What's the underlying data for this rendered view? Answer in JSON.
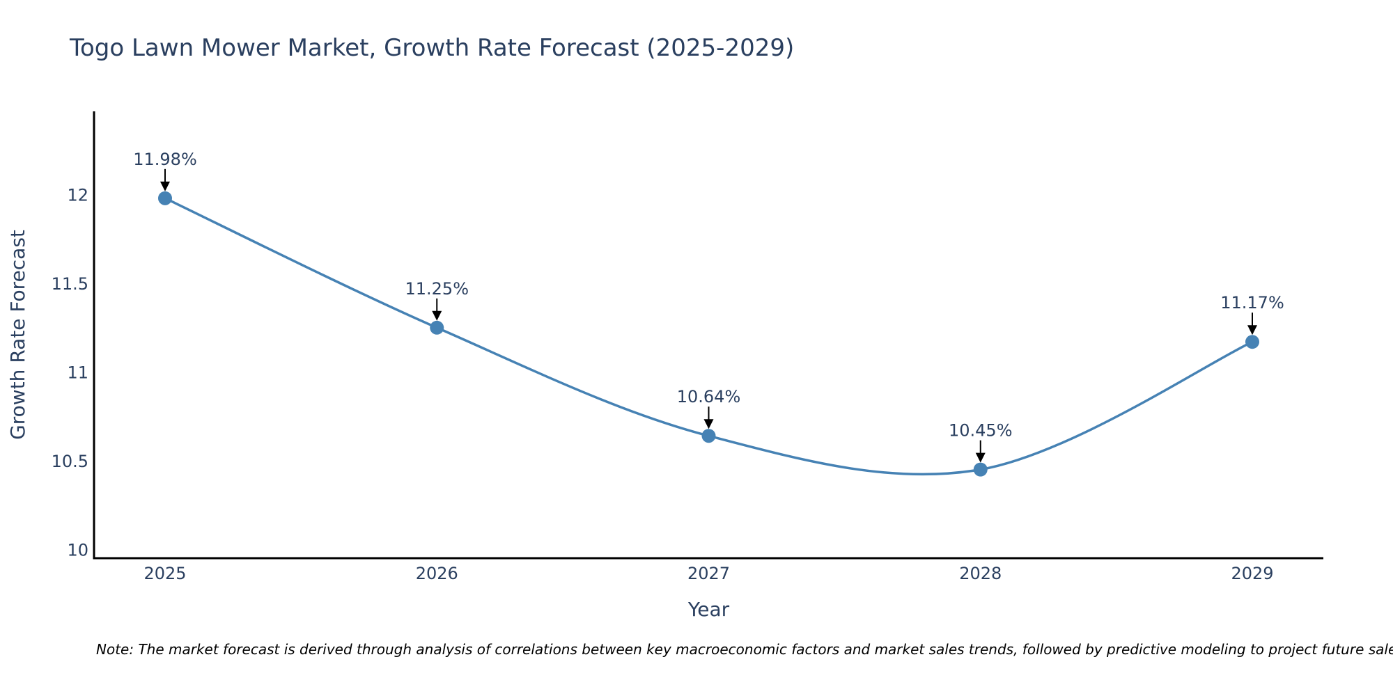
{
  "chart_data": {
    "type": "line",
    "title": "Togo Lawn Mower Market, Growth Rate Forecast (2025-2029)",
    "xlabel": "Year",
    "ylabel": "Growth Rate Forecast",
    "x": [
      "2025",
      "2026",
      "2027",
      "2028",
      "2029"
    ],
    "series": [
      {
        "name": "Growth Rate Forecast",
        "values": [
          11.98,
          11.25,
          10.64,
          10.45,
          11.17
        ]
      }
    ],
    "data_labels": [
      "11.98%",
      "11.25%",
      "10.64%",
      "10.45%",
      "11.17%"
    ],
    "yticks": [
      10,
      10.5,
      11,
      11.5,
      12
    ],
    "ytick_labels": [
      "10",
      "10.5",
      "11",
      "11.5",
      "12"
    ],
    "ylim": [
      9.95,
      12.47
    ],
    "line_color": "#4682b4",
    "grid": false,
    "legend": "none"
  },
  "note": "Note: The market forecast is derived through analysis of correlations between key macroeconomic factors and market sales trends, followed by predictive modeling to project future sales."
}
